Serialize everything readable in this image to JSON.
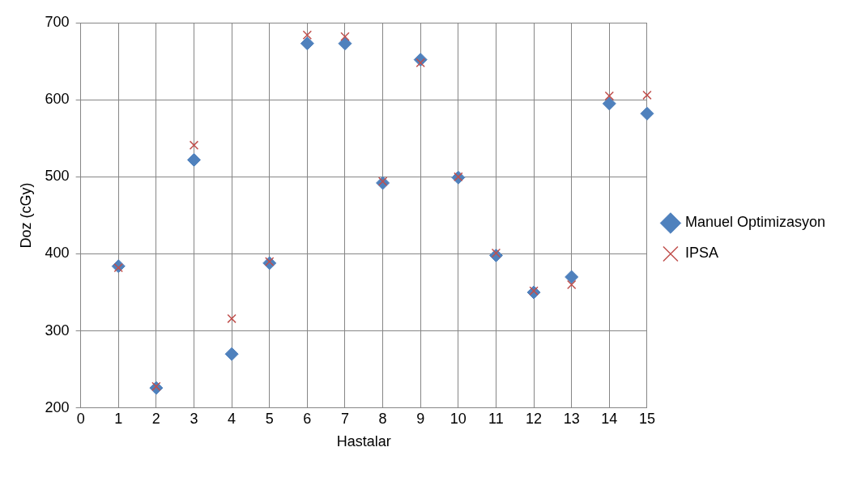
{
  "chart_data": {
    "type": "scatter",
    "xlabel": "Hastalar",
    "ylabel": "Doz (cGy)",
    "x": [
      1,
      2,
      3,
      4,
      5,
      6,
      7,
      8,
      9,
      10,
      11,
      12,
      13,
      14,
      15
    ],
    "series": [
      {
        "name": "Manuel Optimizasyon",
        "color": "#4f81bd",
        "marker": "diamond",
        "values": [
          384,
          226,
          522,
          270,
          388,
          673,
          673,
          492,
          652,
          499,
          398,
          350,
          370,
          595,
          582
        ]
      },
      {
        "name": "IPSA",
        "color": "#c0504d",
        "marker": "cross",
        "values": [
          382,
          228,
          541,
          316,
          390,
          684,
          682,
          494,
          648,
          500,
          401,
          352,
          360,
          605,
          606
        ]
      }
    ],
    "xlim": [
      0,
      15
    ],
    "xticks": [
      0,
      1,
      2,
      3,
      4,
      5,
      6,
      7,
      8,
      9,
      10,
      11,
      12,
      13,
      14,
      15
    ],
    "ylim": [
      200,
      700
    ],
    "yticks": [
      200,
      300,
      400,
      500,
      600,
      700
    ],
    "grid": true,
    "legend": "right"
  }
}
